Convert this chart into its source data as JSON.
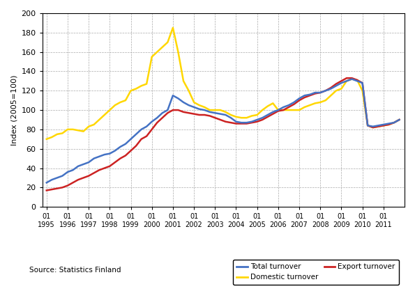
{
  "total_turnover": [
    25,
    28,
    30,
    32,
    36,
    38,
    42,
    44,
    46,
    50,
    52,
    54,
    55,
    58,
    62,
    65,
    70,
    75,
    80,
    83,
    88,
    92,
    97,
    100,
    115,
    112,
    108,
    105,
    103,
    101,
    100,
    98,
    97,
    96,
    95,
    92,
    88,
    87,
    87,
    88,
    90,
    92,
    95,
    98,
    100,
    103,
    105,
    108,
    112,
    115,
    116,
    118,
    118,
    120,
    122,
    125,
    128,
    130,
    132,
    130,
    128,
    84,
    83,
    84,
    85,
    86,
    87,
    90
  ],
  "domestic_turnover": [
    70,
    72,
    75,
    76,
    80,
    80,
    79,
    78,
    83,
    85,
    90,
    95,
    100,
    105,
    108,
    110,
    120,
    122,
    125,
    127,
    155,
    160,
    165,
    170,
    185,
    160,
    130,
    120,
    108,
    105,
    103,
    100,
    100,
    100,
    98,
    95,
    93,
    92,
    92,
    94,
    95,
    100,
    104,
    107,
    100,
    100,
    100,
    100,
    100,
    103,
    105,
    107,
    108,
    110,
    115,
    120,
    122,
    130,
    132,
    131,
    120,
    84,
    82,
    83,
    84,
    85,
    87,
    90
  ],
  "export_turnover": [
    17,
    18,
    19,
    20,
    22,
    25,
    28,
    30,
    32,
    35,
    38,
    40,
    42,
    46,
    50,
    53,
    58,
    63,
    70,
    73,
    80,
    87,
    92,
    97,
    100,
    100,
    98,
    97,
    96,
    95,
    95,
    94,
    92,
    90,
    88,
    87,
    86,
    86,
    86,
    87,
    88,
    90,
    93,
    96,
    99,
    100,
    103,
    106,
    110,
    113,
    115,
    117,
    118,
    120,
    123,
    127,
    130,
    133,
    133,
    131,
    128,
    84,
    82,
    83,
    84,
    85,
    87,
    90
  ],
  "ylim": [
    0,
    200
  ],
  "yticks": [
    0,
    20,
    40,
    60,
    80,
    100,
    120,
    140,
    160,
    180,
    200
  ],
  "ylabel": "Index (2005=100)",
  "source_text": "Source: Statistics Finland",
  "legend_total": "Total turnover",
  "legend_domestic": "Domestic turnover",
  "legend_export": "Export turnover",
  "color_total": "#4472C4",
  "color_domestic": "#FFD700",
  "color_export": "#CC2222",
  "start_year": 1995,
  "n_quarters": 68,
  "background_color": "#FFFFFF",
  "grid_color": "#AAAAAA",
  "line_width": 1.8
}
